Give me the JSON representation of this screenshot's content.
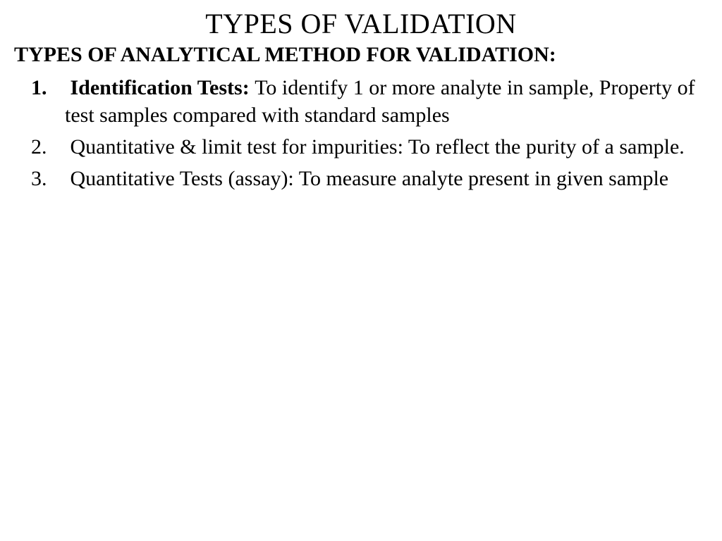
{
  "slide": {
    "title": "TYPES OF VALIDATION",
    "subtitle": "TYPES OF ANALYTICAL METHOD FOR VALIDATION:",
    "items": [
      {
        "lead": "Identification Tests: ",
        "rest": "To identify 1 or more analyte in sample, Property of test samples compared with standard samples",
        "lead_bold": true
      },
      {
        "lead": "",
        "rest": "Quantitative & limit test for impurities: To reflect the purity of a sample.",
        "lead_bold": false
      },
      {
        "lead": "",
        "rest": "Quantitative Tests (assay): To measure analyte present in given sample",
        "lead_bold": false
      }
    ]
  },
  "style": {
    "background_color": "#ffffff",
    "text_color": "#000000",
    "font_family": "Times New Roman",
    "title_fontsize": 40,
    "subtitle_fontsize": 30,
    "body_fontsize": 30,
    "line_height": 1.3
  }
}
